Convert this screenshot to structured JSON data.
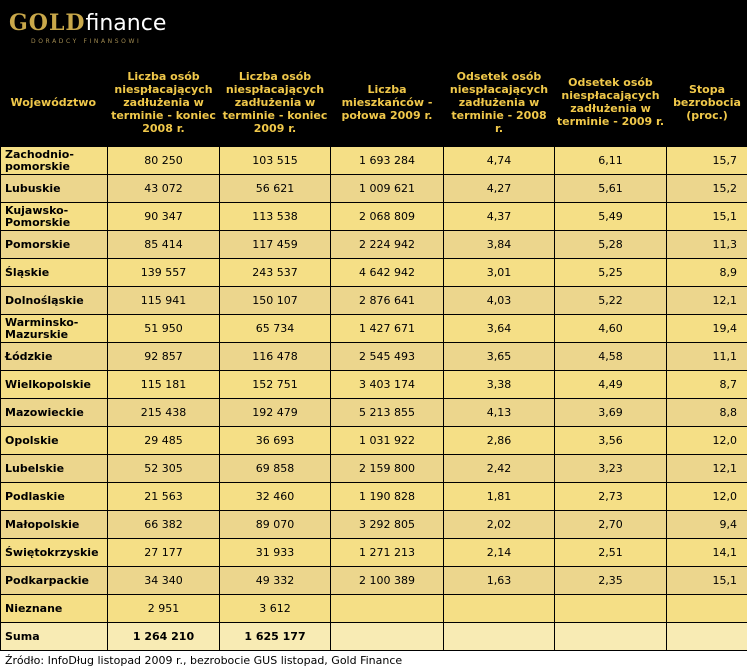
{
  "logo": {
    "brand_gold": "GOLD",
    "brand_rest": "finance",
    "tagline": "DORADCY FINANSOWI"
  },
  "source": "Źródło: InfoDług listopad 2009 r., bezrobocie GUS listopad, Gold Finance",
  "chart_data": {
    "type": "table",
    "columns": [
      "Województwo",
      "Liczba osób niespłacających zadłużenia w terminie - koniec 2008 r.",
      "Liczba osób niespłacających zadłużenia w terminie - koniec 2009 r.",
      "Liczba mieszkańców - połowa 2009 r.",
      "Odsetek osób niespłacających zadłużenia w terminie - 2008 r.",
      "Odsetek osób niespłacających zadłużenia w terminie - 2009 r.",
      "Stopa bezrobocia (proc.)"
    ],
    "rows": [
      [
        "Zachodnio-pomorskie",
        "80 250",
        "103 515",
        "1 693 284",
        "4,74",
        "6,11",
        "15,7"
      ],
      [
        "Lubuskie",
        "43 072",
        "56 621",
        "1 009 621",
        "4,27",
        "5,61",
        "15,2"
      ],
      [
        "Kujawsko-Pomorskie",
        "90 347",
        "113 538",
        "2 068 809",
        "4,37",
        "5,49",
        "15,1"
      ],
      [
        "Pomorskie",
        "85 414",
        "117 459",
        "2 224 942",
        "3,84",
        "5,28",
        "11,3"
      ],
      [
        "Śląskie",
        "139 557",
        "243 537",
        "4 642 942",
        "3,01",
        "5,25",
        "8,9"
      ],
      [
        "Dolnośląskie",
        "115 941",
        "150 107",
        "2 876 641",
        "4,03",
        "5,22",
        "12,1"
      ],
      [
        "Warminsko-Mazurskie",
        "51 950",
        "65 734",
        "1 427 671",
        "3,64",
        "4,60",
        "19,4"
      ],
      [
        "Łódzkie",
        "92 857",
        "116 478",
        "2 545 493",
        "3,65",
        "4,58",
        "11,1"
      ],
      [
        "Wielkopolskie",
        "115 181",
        "152 751",
        "3 403 174",
        "3,38",
        "4,49",
        "8,7"
      ],
      [
        "Mazowieckie",
        "215 438",
        "192 479",
        "5 213 855",
        "4,13",
        "3,69",
        "8,8"
      ],
      [
        "Opolskie",
        "29 485",
        "36 693",
        "1 031 922",
        "2,86",
        "3,56",
        "12,0"
      ],
      [
        "Lubelskie",
        "52 305",
        "69 858",
        "2 159 800",
        "2,42",
        "3,23",
        "12,1"
      ],
      [
        "Podlaskie",
        "21 563",
        "32 460",
        "1 190 828",
        "1,81",
        "2,73",
        "12,0"
      ],
      [
        "Małopolskie",
        "66 382",
        "89 070",
        "3 292 805",
        "2,02",
        "2,70",
        "9,4"
      ],
      [
        "Świętokrzyskie",
        "27 177",
        "31 933",
        "1 271 213",
        "2,14",
        "2,51",
        "14,1"
      ],
      [
        "Podkarpackie",
        "34 340",
        "49 332",
        "2 100 389",
        "1,63",
        "2,35",
        "15,1"
      ],
      [
        "Nieznane",
        "2 951",
        "3 612",
        "",
        "",
        "",
        ""
      ]
    ],
    "total_row": [
      "Suma",
      "1 264 210",
      "1 625 177",
      "",
      "",
      "",
      ""
    ]
  }
}
